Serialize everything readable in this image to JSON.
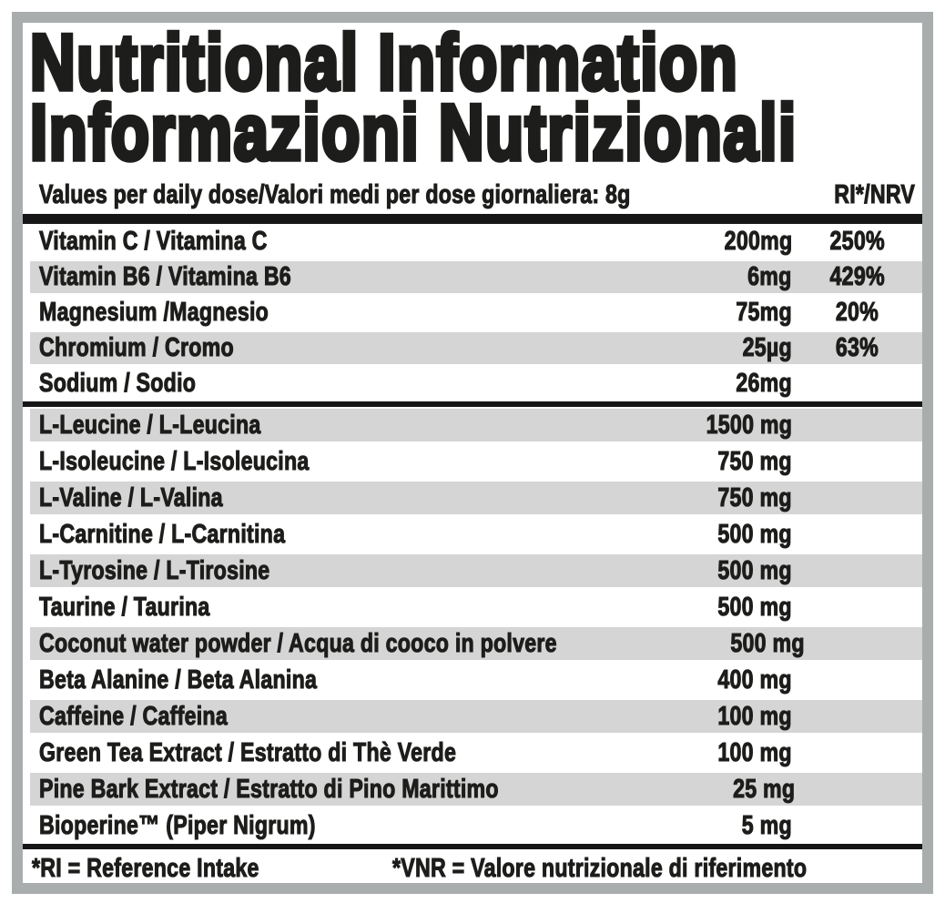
{
  "document": {
    "title_line1": "Nutritional Information",
    "title_line2": "Informazioni Nutrizionali",
    "header": {
      "dose_label": "Values per daily dose/Valori medi per dose giornaliera: 8g",
      "ri_column_label": "RI*/NRV"
    },
    "footnotes": {
      "ri": "*RI = Reference Intake",
      "vnr": "*VNR = Valore nutrizionale di riferimento"
    },
    "colors": {
      "text": "#1d1d1b",
      "row_shade": "#d5d5d5",
      "frame": "#a9adad",
      "bar": "#161616",
      "background": "#ffffff"
    }
  },
  "table": {
    "sections": [
      {
        "name": "vitamins-minerals",
        "rows": [
          {
            "name": "Vitamin C / Vitamina C",
            "amount": "200mg",
            "nrv": "250%"
          },
          {
            "name": "Vitamin B6 / Vitamina B6",
            "amount": "6mg",
            "nrv": "429%"
          },
          {
            "name": "Magnesium /Magnesio",
            "amount": "75mg",
            "nrv": "20%"
          },
          {
            "name": "Chromium / Cromo",
            "amount": "25µg",
            "nrv": "63%"
          },
          {
            "name": "Sodium / Sodio",
            "amount": "26mg",
            "nrv": ""
          }
        ]
      },
      {
        "name": "active-ingredients",
        "rows": [
          {
            "name": "L-Leucine / L-Leucina",
            "amount": "1500 mg",
            "nrv": ""
          },
          {
            "name": "L-Isoleucine / L-Isoleucina",
            "amount": "750 mg",
            "nrv": ""
          },
          {
            "name": "L-Valine / L-Valina",
            "amount": "750 mg",
            "nrv": ""
          },
          {
            "name": "L-Carnitine / L-Carnitina",
            "amount": "500 mg",
            "nrv": ""
          },
          {
            "name": "L-Tyrosine / L-Tirosine",
            "amount": "500 mg",
            "nrv": ""
          },
          {
            "name": "Taurine / Taurina",
            "amount": "500 mg",
            "nrv": ""
          },
          {
            "name": "Coconut water powder / Acqua di cooco in polvere",
            "amount": "500 mg",
            "nrv": ""
          },
          {
            "name": "Beta Alanine / Beta Alanina",
            "amount": "400 mg",
            "nrv": ""
          },
          {
            "name": "Caffeine / Caffeina",
            "amount": "100 mg",
            "nrv": ""
          },
          {
            "name": "Green Tea Extract / Estratto di Thè Verde",
            "amount": "100 mg",
            "nrv": ""
          },
          {
            "name": "Pine Bark Extract / Estratto di Pino Marittimo",
            "amount": "25 mg",
            "nrv": ""
          },
          {
            "name": "Bioperine™ (Piper Nigrum)",
            "amount": "5 mg",
            "nrv": ""
          }
        ]
      }
    ]
  }
}
